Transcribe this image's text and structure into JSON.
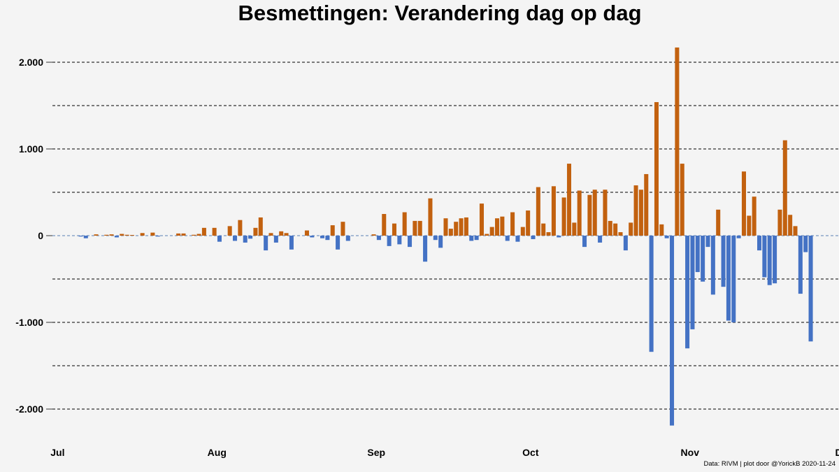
{
  "chart_data": {
    "type": "bar",
    "title": "Besmettingen: Verandering dag op dag",
    "xlabel": "",
    "ylabel": "",
    "x_start": "2020-06-30",
    "x_end": "2020-11-30",
    "x_ticks": [
      {
        "date": "2020-07-01",
        "label": "Jul"
      },
      {
        "date": "2020-08-01",
        "label": "Aug"
      },
      {
        "date": "2020-09-01",
        "label": "Sep"
      },
      {
        "date": "2020-10-01",
        "label": "Oct"
      },
      {
        "date": "2020-11-01",
        "label": "Nov"
      },
      {
        "date": "2020-12-01",
        "label": "Dec"
      }
    ],
    "ylim": [
      -2400,
      2200
    ],
    "y_ticks": [
      {
        "value": 2000,
        "label": "2.000"
      },
      {
        "value": 1000,
        "label": "1.000"
      },
      {
        "value": 0,
        "label": "0"
      },
      {
        "value": -1000,
        "label": "-1.000"
      },
      {
        "value": -2000,
        "label": "-2.000"
      }
    ],
    "y_grid_minor": [
      1500,
      500,
      -500,
      -1500
    ],
    "grid": true,
    "colors": {
      "increase": "#c2610f",
      "decrease": "#4472c4",
      "background": "#f4f4f4"
    },
    "series": [
      {
        "values": [
          [
            "2020-07-05",
            -10
          ],
          [
            "2020-07-06",
            -30
          ],
          [
            "2020-07-08",
            15
          ],
          [
            "2020-07-10",
            10
          ],
          [
            "2020-07-11",
            15
          ],
          [
            "2020-07-12",
            -20
          ],
          [
            "2020-07-13",
            20
          ],
          [
            "2020-07-14",
            10
          ],
          [
            "2020-07-15",
            8
          ],
          [
            "2020-07-17",
            30
          ],
          [
            "2020-07-19",
            35
          ],
          [
            "2020-07-20",
            -10
          ],
          [
            "2020-07-24",
            25
          ],
          [
            "2020-07-25",
            25
          ],
          [
            "2020-07-27",
            10
          ],
          [
            "2020-07-28",
            20
          ],
          [
            "2020-07-29",
            90
          ],
          [
            "2020-07-31",
            90
          ],
          [
            "2020-08-01",
            -70
          ],
          [
            "2020-08-03",
            110
          ],
          [
            "2020-08-04",
            -60
          ],
          [
            "2020-08-05",
            180
          ],
          [
            "2020-08-06",
            -80
          ],
          [
            "2020-08-07",
            -35
          ],
          [
            "2020-08-08",
            90
          ],
          [
            "2020-08-09",
            210
          ],
          [
            "2020-08-10",
            -170
          ],
          [
            "2020-08-11",
            30
          ],
          [
            "2020-08-12",
            -80
          ],
          [
            "2020-08-13",
            50
          ],
          [
            "2020-08-14",
            30
          ],
          [
            "2020-08-15",
            -160
          ],
          [
            "2020-08-18",
            60
          ],
          [
            "2020-08-19",
            -20
          ],
          [
            "2020-08-21",
            -30
          ],
          [
            "2020-08-22",
            -50
          ],
          [
            "2020-08-23",
            120
          ],
          [
            "2020-08-24",
            -160
          ],
          [
            "2020-08-25",
            160
          ],
          [
            "2020-08-26",
            -60
          ],
          [
            "2020-08-31",
            15
          ],
          [
            "2020-09-01",
            -50
          ],
          [
            "2020-09-02",
            250
          ],
          [
            "2020-09-03",
            -120
          ],
          [
            "2020-09-04",
            140
          ],
          [
            "2020-09-05",
            -100
          ],
          [
            "2020-09-06",
            270
          ],
          [
            "2020-09-07",
            -130
          ],
          [
            "2020-09-08",
            170
          ],
          [
            "2020-09-09",
            170
          ],
          [
            "2020-09-10",
            -300
          ],
          [
            "2020-09-11",
            430
          ],
          [
            "2020-09-12",
            -50
          ],
          [
            "2020-09-13",
            -140
          ],
          [
            "2020-09-14",
            200
          ],
          [
            "2020-09-15",
            80
          ],
          [
            "2020-09-16",
            160
          ],
          [
            "2020-09-17",
            200
          ],
          [
            "2020-09-18",
            210
          ],
          [
            "2020-09-19",
            -60
          ],
          [
            "2020-09-20",
            -50
          ],
          [
            "2020-09-21",
            370
          ],
          [
            "2020-09-22",
            20
          ],
          [
            "2020-09-23",
            100
          ],
          [
            "2020-09-24",
            200
          ],
          [
            "2020-09-25",
            220
          ],
          [
            "2020-09-26",
            -60
          ],
          [
            "2020-09-27",
            270
          ],
          [
            "2020-09-28",
            -70
          ],
          [
            "2020-09-29",
            100
          ],
          [
            "2020-09-30",
            290
          ],
          [
            "2020-10-01",
            -40
          ],
          [
            "2020-10-02",
            560
          ],
          [
            "2020-10-03",
            140
          ],
          [
            "2020-10-04",
            40
          ],
          [
            "2020-10-05",
            570
          ],
          [
            "2020-10-06",
            -20
          ],
          [
            "2020-10-07",
            440
          ],
          [
            "2020-10-08",
            830
          ],
          [
            "2020-10-09",
            150
          ],
          [
            "2020-10-10",
            520
          ],
          [
            "2020-10-11",
            -130
          ],
          [
            "2020-10-12",
            470
          ],
          [
            "2020-10-13",
            530
          ],
          [
            "2020-10-14",
            -80
          ],
          [
            "2020-10-15",
            530
          ],
          [
            "2020-10-16",
            170
          ],
          [
            "2020-10-17",
            140
          ],
          [
            "2020-10-18",
            40
          ],
          [
            "2020-10-19",
            -170
          ],
          [
            "2020-10-20",
            150
          ],
          [
            "2020-10-21",
            580
          ],
          [
            "2020-10-22",
            530
          ],
          [
            "2020-10-23",
            710
          ],
          [
            "2020-10-24",
            -1340
          ],
          [
            "2020-10-25",
            1540
          ],
          [
            "2020-10-26",
            130
          ],
          [
            "2020-10-27",
            -30
          ],
          [
            "2020-10-28",
            -2190
          ],
          [
            "2020-10-29",
            2170
          ],
          [
            "2020-10-30",
            830
          ],
          [
            "2020-10-31",
            -1300
          ],
          [
            "2020-11-01",
            -1080
          ],
          [
            "2020-11-02",
            -420
          ],
          [
            "2020-11-03",
            -530
          ],
          [
            "2020-11-04",
            -130
          ],
          [
            "2020-11-05",
            -680
          ],
          [
            "2020-11-06",
            300
          ],
          [
            "2020-11-07",
            -590
          ],
          [
            "2020-11-08",
            -980
          ],
          [
            "2020-11-09",
            -1000
          ],
          [
            "2020-11-10",
            -30
          ],
          [
            "2020-11-11",
            740
          ],
          [
            "2020-11-12",
            230
          ],
          [
            "2020-11-13",
            450
          ],
          [
            "2020-11-14",
            -170
          ],
          [
            "2020-11-15",
            -480
          ],
          [
            "2020-11-16",
            -570
          ],
          [
            "2020-11-17",
            -550
          ],
          [
            "2020-11-18",
            300
          ],
          [
            "2020-11-19",
            1100
          ],
          [
            "2020-11-20",
            240
          ],
          [
            "2020-11-21",
            110
          ],
          [
            "2020-11-22",
            -670
          ],
          [
            "2020-11-23",
            -190
          ],
          [
            "2020-11-24",
            -1220
          ]
        ]
      }
    ]
  },
  "caption": "Data: RIVM | plot door @YorickB  2020-11-24"
}
